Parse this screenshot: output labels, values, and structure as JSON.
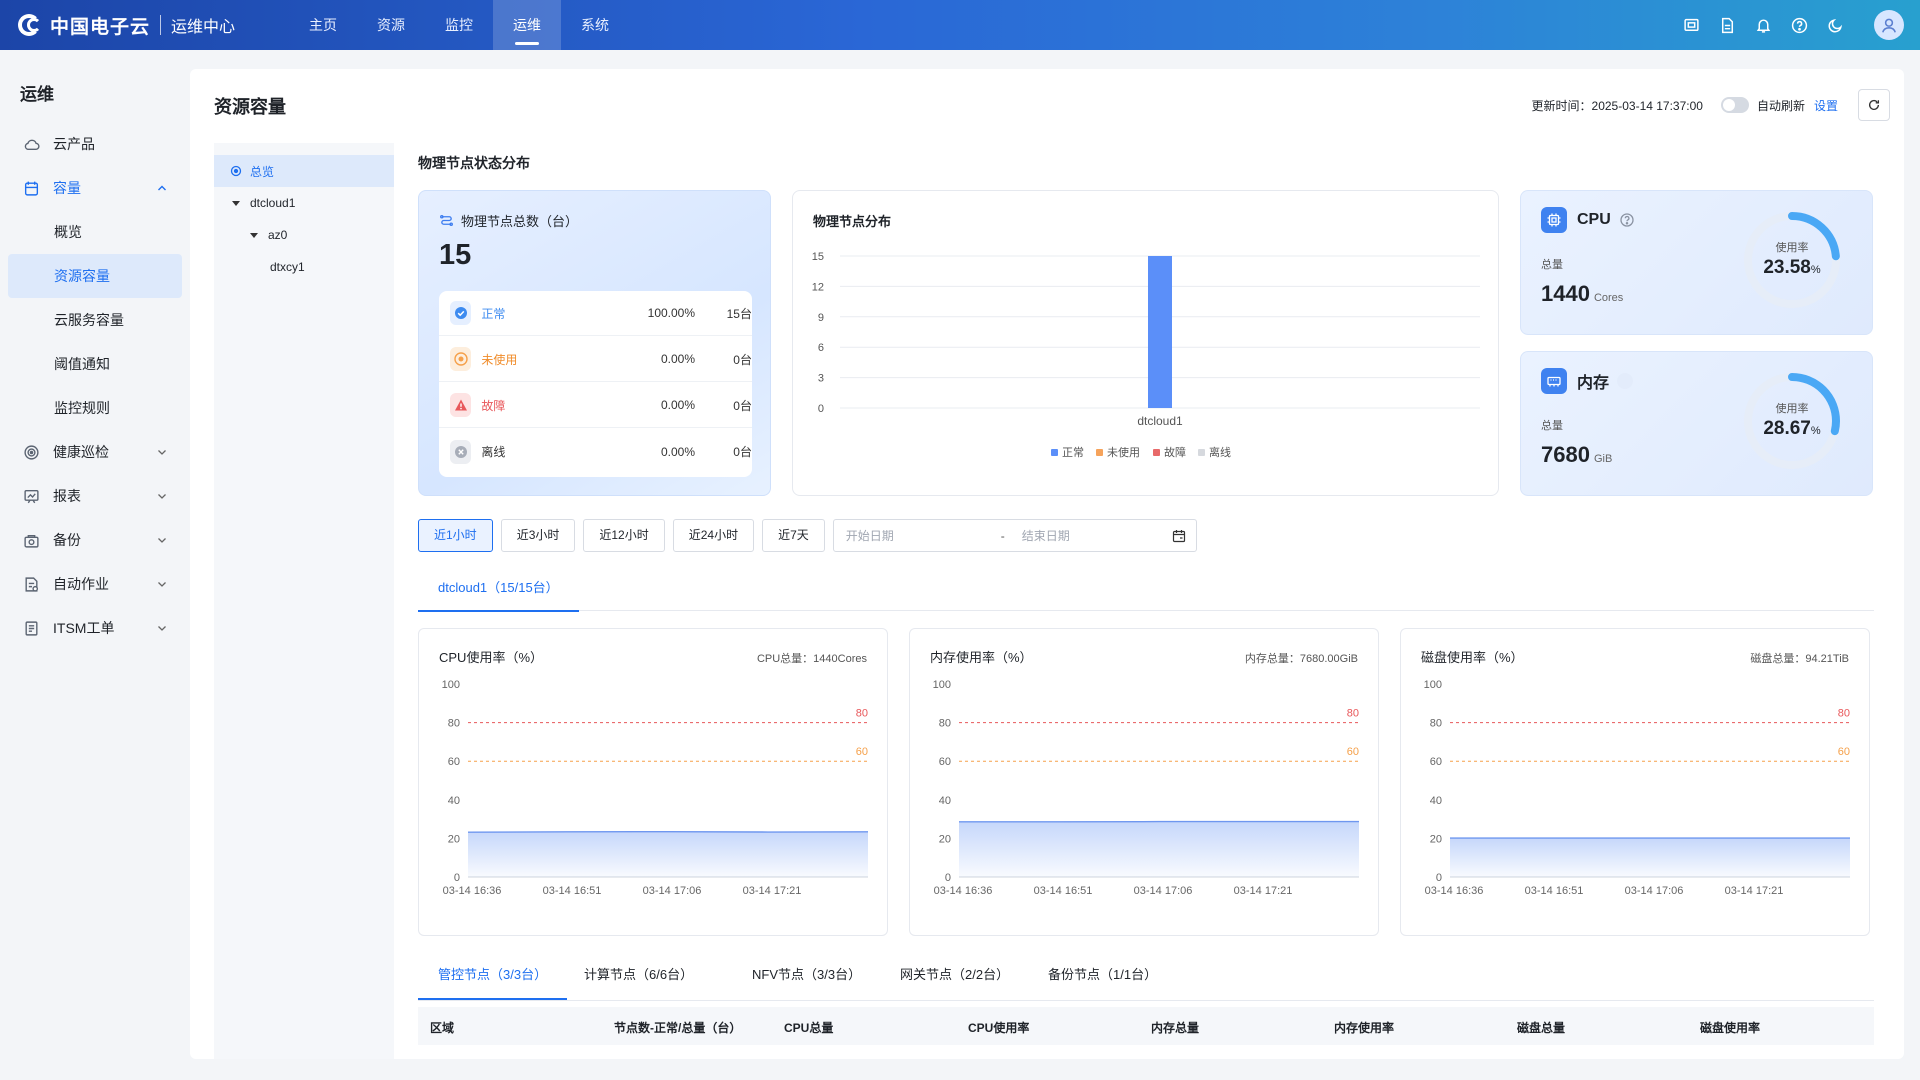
{
  "app": {
    "logo_text": "中国电子云",
    "subtitle": "运维中心"
  },
  "topnav": [
    {
      "label": "主页"
    },
    {
      "label": "资源"
    },
    {
      "label": "监控"
    },
    {
      "label": "运维",
      "active": true
    },
    {
      "label": "系统"
    }
  ],
  "topicons": [
    "screen-icon",
    "document-icon",
    "bell-icon",
    "help-icon",
    "moon-icon",
    "user-avatar-icon"
  ],
  "sidebar": {
    "title": "运维",
    "items": [
      {
        "label": "云产品",
        "icon": "cloud-icon"
      },
      {
        "label": "容量",
        "icon": "capacity-icon",
        "open": true
      },
      {
        "label": "健康巡检",
        "icon": "target-icon"
      },
      {
        "label": "报表",
        "icon": "report-icon"
      },
      {
        "label": "备份",
        "icon": "backup-icon"
      },
      {
        "label": "自动作业",
        "icon": "automation-icon"
      },
      {
        "label": "ITSM工单",
        "icon": "ticket-icon"
      }
    ],
    "sub_items": [
      {
        "label": "概览"
      },
      {
        "label": "资源容量",
        "active": true
      },
      {
        "label": "云服务容量"
      },
      {
        "label": "阈值通知"
      },
      {
        "label": "监控规则"
      }
    ]
  },
  "page": {
    "title": "资源容量",
    "update_time_label": "更新时间：2025-03-14 17:37:00",
    "auto_refresh_label": "自动刷新",
    "settings_link": "设置"
  },
  "tree": {
    "root": "总览",
    "nodes": [
      "dtcloud1",
      "az0",
      "dtxcy1"
    ]
  },
  "physical": {
    "section_title": "物理节点状态分布",
    "total_label": "物理节点总数（台）",
    "total_value": "15",
    "statuses": [
      {
        "label": "正常",
        "pct": "100.00%",
        "count": "15台",
        "color": "#3d8bf0"
      },
      {
        "label": "未使用",
        "pct": "0.00%",
        "count": "0台",
        "color": "#f5a04a"
      },
      {
        "label": "故障",
        "pct": "0.00%",
        "count": "0台",
        "color": "#e8575a"
      },
      {
        "label": "离线",
        "pct": "0.00%",
        "count": "0台",
        "color": "#a7adb8"
      }
    ],
    "dist_title": "物理节点分布"
  },
  "resources": {
    "cpu": {
      "name": "CPU",
      "total_label": "总量",
      "total": "1440",
      "unit": "Cores",
      "usage_label": "使用率",
      "usage": "23.58",
      "usage_unit": "%",
      "usage_value": 23.58
    },
    "mem": {
      "name": "内存",
      "total_label": "总量",
      "total": "7680",
      "unit": "GiB",
      "usage_label": "使用率",
      "usage": "28.67",
      "usage_unit": "%",
      "usage_value": 28.67
    }
  },
  "range_buttons": [
    "近1小时",
    "近3小时",
    "近12小时",
    "近24小时",
    "近7天"
  ],
  "date_range": {
    "start_placeholder": "开始日期",
    "separator": "-",
    "end_placeholder": "结束日期"
  },
  "region_tab": "dtcloud1（15/15台）",
  "usage_charts": [
    {
      "title": "CPU使用率（%）",
      "total": "CPU总量：1440Cores"
    },
    {
      "title": "内存使用率（%）",
      "total": "内存总量：7680.00GiB"
    },
    {
      "title": "磁盘使用率（%）",
      "total": "磁盘总量：94.21TiB"
    }
  ],
  "node_tabs": [
    "管控节点（3/3台）",
    "计算节点（6/6台）",
    "NFV节点（3/3台）",
    "网关节点（2/2台）",
    "备份节点（1/1台）"
  ],
  "table_headers": [
    "区域",
    "节点数-正常/总量（台）",
    "CPU总量",
    "CPU使用率",
    "内存总量",
    "内存使用率",
    "磁盘总量",
    "磁盘使用率"
  ],
  "chart_data": [
    {
      "type": "bar",
      "title": "物理节点分布",
      "categories": [
        "dtcloud1"
      ],
      "series": [
        {
          "name": "正常",
          "values": [
            15
          ],
          "color": "#5b8ff9"
        },
        {
          "name": "未使用",
          "values": [
            0
          ],
          "color": "#f6a35b"
        },
        {
          "name": "故障",
          "values": [
            0
          ],
          "color": "#e86a6a"
        },
        {
          "name": "离线",
          "values": [
            0
          ],
          "color": "#d6d9de"
        }
      ],
      "ylim": [
        0,
        15
      ],
      "yticks": [
        0,
        3,
        6,
        9,
        12,
        15
      ],
      "legend": "bottom"
    },
    {
      "type": "area",
      "title": "CPU使用率（%）",
      "x": [
        "03-14 16:36",
        "03-14 16:51",
        "03-14 17:06",
        "03-14 17:21",
        "03-14 17:36"
      ],
      "xticks": [
        "03-14 16:36",
        "03-14 16:51",
        "03-14 17:06",
        "03-14 17:21"
      ],
      "values": [
        23.2,
        23.4,
        23.5,
        23.3,
        23.4
      ],
      "ylim": [
        0,
        100
      ],
      "yticks": [
        0,
        20,
        40,
        60,
        80,
        100
      ],
      "thresholds": [
        {
          "value": 80,
          "color": "#e8575a"
        },
        {
          "value": 60,
          "color": "#f5a04a"
        }
      ]
    },
    {
      "type": "area",
      "title": "内存使用率（%）",
      "x": [
        "03-14 16:36",
        "03-14 16:51",
        "03-14 17:06",
        "03-14 17:21",
        "03-14 17:36"
      ],
      "xticks": [
        "03-14 16:36",
        "03-14 16:51",
        "03-14 17:06",
        "03-14 17:21"
      ],
      "values": [
        28.6,
        28.6,
        28.7,
        28.7,
        28.7
      ],
      "ylim": [
        0,
        100
      ],
      "yticks": [
        0,
        20,
        40,
        60,
        80,
        100
      ],
      "thresholds": [
        {
          "value": 80,
          "color": "#e8575a"
        },
        {
          "value": 60,
          "color": "#f5a04a"
        }
      ]
    },
    {
      "type": "area",
      "title": "磁盘使用率（%）",
      "x": [
        "03-14 16:36",
        "03-14 16:51",
        "03-14 17:06",
        "03-14 17:21",
        "03-14 17:36"
      ],
      "xticks": [
        "03-14 16:36",
        "03-14 16:51",
        "03-14 17:06",
        "03-14 17:21"
      ],
      "values": [
        20.2,
        20.2,
        20.2,
        20.2,
        20.2
      ],
      "ylim": [
        0,
        100
      ],
      "yticks": [
        0,
        20,
        40,
        60,
        80,
        100
      ],
      "thresholds": [
        {
          "value": 80,
          "color": "#e8575a"
        },
        {
          "value": 60,
          "color": "#f5a04a"
        }
      ]
    }
  ]
}
